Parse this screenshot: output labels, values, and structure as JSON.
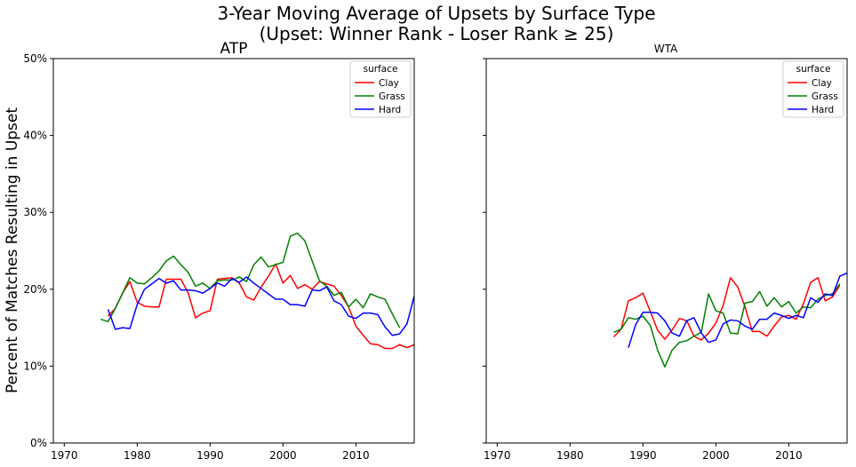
{
  "figure": {
    "title_line1": "3-Year Moving Average of Upsets by Surface Type",
    "title_line2": "(Upset: Winner Rank - Loser Rank ≥ 25)",
    "ylabel": "Percent of Matches Resulting in Upset"
  },
  "colors": {
    "Clay": "#ff0000",
    "Grass": "#008000",
    "Hard": "#0000ff"
  },
  "chart_data": [
    {
      "type": "line",
      "title": "ATP",
      "legend_title": "surface",
      "legend_position": "top-right",
      "xlim": [
        1968.5,
        2018
      ],
      "ylim": [
        0,
        50
      ],
      "x_ticks": [
        1970,
        1980,
        1990,
        2000,
        2010
      ],
      "x_tick_labels": [
        "1970",
        "1980",
        "1990",
        "2000",
        "2010"
      ],
      "y_ticks": [
        0,
        10,
        20,
        30,
        40,
        50
      ],
      "y_tick_labels": [
        "0%",
        "10%",
        "20%",
        "30%",
        "40%",
        "50%"
      ],
      "grid": false,
      "series": [
        {
          "name": "Clay",
          "x": [
            1976,
            1977,
            1978,
            1979,
            1980,
            1981,
            1982,
            1983,
            1984,
            1985,
            1986,
            1987,
            1988,
            1989,
            1990,
            1991,
            1992,
            1993,
            1994,
            1995,
            1996,
            1997,
            1998,
            1999,
            2000,
            2001,
            2002,
            2003,
            2004,
            2005,
            2006,
            2007,
            2008,
            2009,
            2010,
            2011,
            2012,
            2013,
            2014,
            2015,
            2016,
            2017,
            2018
          ],
          "y": [
            16.5,
            17.5,
            19.5,
            21.0,
            18.3,
            17.8,
            17.7,
            17.7,
            21.3,
            21.3,
            21.3,
            19.5,
            16.3,
            16.9,
            17.2,
            21.3,
            21.4,
            21.5,
            20.8,
            19.0,
            18.6,
            20.3,
            21.7,
            23.3,
            20.8,
            21.8,
            20.1,
            20.6,
            20.0,
            21.0,
            20.7,
            20.4,
            19.2,
            17.7,
            15.2,
            14.0,
            12.9,
            12.8,
            12.3,
            12.3,
            12.8,
            12.4,
            12.8
          ]
        },
        {
          "name": "Grass",
          "x": [
            1975,
            1976,
            1977,
            1978,
            1979,
            1980,
            1981,
            1982,
            1983,
            1984,
            1985,
            1986,
            1987,
            1988,
            1989,
            1990,
            1991,
            1992,
            1993,
            1994,
            1995,
            1996,
            1997,
            1998,
            1999,
            2000,
            2001,
            2002,
            2003,
            2004,
            2005,
            2006,
            2007,
            2008,
            2009,
            2010,
            2011,
            2012,
            2013,
            2014,
            2015,
            2016
          ],
          "y": [
            16.1,
            15.8,
            17.5,
            19.5,
            21.5,
            20.8,
            20.7,
            21.5,
            22.4,
            23.7,
            24.3,
            23.2,
            22.2,
            20.4,
            20.8,
            20.1,
            21.1,
            21.2,
            21.2,
            21.6,
            21.0,
            23.2,
            24.2,
            22.9,
            23.2,
            23.5,
            26.9,
            27.3,
            26.3,
            23.7,
            21.1,
            20.4,
            19.2,
            19.6,
            17.7,
            18.7,
            17.6,
            19.4,
            19.0,
            18.7,
            16.8,
            15.0
          ]
        },
        {
          "name": "Hard",
          "x": [
            1976,
            1977,
            1978,
            1979,
            1980,
            1981,
            1982,
            1983,
            1984,
            1985,
            1986,
            1987,
            1988,
            1989,
            1990,
            1991,
            1992,
            1993,
            1994,
            1995,
            1996,
            1997,
            1998,
            1999,
            2000,
            2001,
            2002,
            2003,
            2004,
            2005,
            2006,
            2007,
            2008,
            2009,
            2010,
            2011,
            2012,
            2013,
            2014,
            2015,
            2016,
            2017,
            2018
          ],
          "y": [
            17.4,
            14.8,
            15.0,
            14.9,
            18.0,
            20.0,
            20.7,
            21.4,
            20.8,
            21.1,
            19.9,
            19.9,
            19.8,
            19.5,
            20.1,
            20.8,
            20.4,
            21.4,
            20.9,
            21.6,
            20.8,
            20.1,
            19.4,
            18.7,
            18.7,
            18.0,
            18.0,
            17.8,
            19.9,
            19.8,
            20.3,
            18.5,
            18.0,
            16.5,
            16.2,
            16.9,
            16.9,
            16.7,
            15.1,
            14.0,
            14.2,
            15.5,
            19.1
          ]
        }
      ]
    },
    {
      "type": "line",
      "title": "WTA",
      "legend_title": "surface",
      "legend_position": "top-right",
      "xlim": [
        1968.5,
        2018
      ],
      "ylim": [
        0,
        50
      ],
      "x_ticks": [
        1970,
        1980,
        1990,
        2000,
        2010
      ],
      "x_tick_labels": [
        "1970",
        "1980",
        "1990",
        "2000",
        "2010"
      ],
      "y_ticks": [
        0,
        10,
        20,
        30,
        40,
        50
      ],
      "grid": false,
      "series": [
        {
          "name": "Clay",
          "x": [
            1986,
            1987,
            1988,
            1989,
            1990,
            1991,
            1992,
            1993,
            1994,
            1995,
            1996,
            1997,
            1998,
            1999,
            2000,
            2001,
            2002,
            2003,
            2004,
            2005,
            2006,
            2007,
            2008,
            2009,
            2010,
            2011,
            2012,
            2013,
            2014,
            2015,
            2016,
            2017
          ],
          "y": [
            13.8,
            14.8,
            18.5,
            18.9,
            19.5,
            17.1,
            14.7,
            13.5,
            14.7,
            16.2,
            15.9,
            13.9,
            13.4,
            14.3,
            15.6,
            17.9,
            21.5,
            20.3,
            17.7,
            14.5,
            14.5,
            13.9,
            15.2,
            16.4,
            16.6,
            16.1,
            18.1,
            20.9,
            21.5,
            18.5,
            19.0,
            20.5
          ]
        },
        {
          "name": "Grass",
          "x": [
            1986,
            1987,
            1988,
            1989,
            1990,
            1991,
            1992,
            1993,
            1994,
            1995,
            1996,
            1997,
            1998,
            1999,
            2000,
            2001,
            2002,
            2003,
            2004,
            2005,
            2006,
            2007,
            2008,
            2009,
            2010,
            2011,
            2012,
            2013,
            2014,
            2015,
            2016,
            2017
          ],
          "y": [
            14.4,
            14.8,
            16.3,
            16.1,
            16.5,
            15.3,
            12.1,
            9.9,
            12.1,
            13.1,
            13.3,
            13.9,
            14.4,
            19.4,
            17.2,
            16.9,
            14.3,
            14.2,
            18.2,
            18.4,
            19.7,
            17.8,
            18.9,
            17.7,
            18.4,
            16.9,
            17.7,
            17.6,
            18.7,
            19.2,
            19.4,
            20.7
          ]
        },
        {
          "name": "Hard",
          "x": [
            1988,
            1989,
            1990,
            1991,
            1992,
            1993,
            1994,
            1995,
            1996,
            1997,
            1998,
            1999,
            2000,
            2001,
            2002,
            2003,
            2004,
            2005,
            2006,
            2007,
            2008,
            2009,
            2010,
            2011,
            2012,
            2013,
            2014,
            2015,
            2016,
            2017,
            2018
          ],
          "y": [
            12.4,
            15.4,
            17.0,
            17.0,
            16.9,
            15.9,
            14.3,
            13.9,
            15.9,
            16.3,
            14.3,
            13.1,
            13.4,
            15.5,
            16.0,
            15.9,
            15.2,
            14.8,
            16.1,
            16.1,
            16.9,
            16.6,
            16.2,
            16.6,
            16.3,
            18.9,
            18.3,
            19.4,
            19.2,
            21.7,
            22.1
          ]
        }
      ]
    }
  ]
}
